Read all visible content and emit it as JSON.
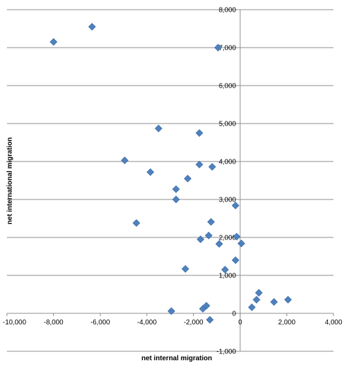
{
  "chart_data": {
    "type": "scatter",
    "xlabel": "net internal migration",
    "ylabel": "net international migration",
    "xlim": [
      -10000,
      4000
    ],
    "ylim": [
      -1000,
      8000
    ],
    "x_ticks": [
      -10000,
      -8000,
      -6000,
      -4000,
      -2000,
      0,
      2000,
      4000
    ],
    "y_ticks": [
      -1000,
      0,
      1000,
      2000,
      3000,
      4000,
      5000,
      6000,
      7000,
      8000
    ],
    "x_tick_labels": [
      "-10,000",
      "-8,000",
      "-6,000",
      "-4,000",
      "-2,000",
      "0",
      "2,000",
      "4,000"
    ],
    "y_tick_labels": [
      "-1,000",
      "0",
      "1,000",
      "2,000",
      "3,000",
      "4,000",
      "5,000",
      "6,000",
      "7,000",
      "8,000"
    ],
    "grid": "horizontal",
    "marker": "diamond",
    "marker_color": "#4F81BD",
    "series": [
      {
        "points": [
          [
            -8000,
            7150
          ],
          [
            -6350,
            7550
          ],
          [
            -950,
            7000
          ],
          [
            -3500,
            4870
          ],
          [
            -1750,
            4750
          ],
          [
            -4950,
            4030
          ],
          [
            -1750,
            3920
          ],
          [
            -1200,
            3860
          ],
          [
            -3850,
            3720
          ],
          [
            -2250,
            3550
          ],
          [
            -2750,
            3270
          ],
          [
            -2750,
            3000
          ],
          [
            -4450,
            2380
          ],
          [
            -1250,
            2410
          ],
          [
            -200,
            2840
          ],
          [
            -1350,
            2050
          ],
          [
            -1700,
            1950
          ],
          [
            -150,
            2020
          ],
          [
            -900,
            1830
          ],
          [
            50,
            1840
          ],
          [
            -200,
            1400
          ],
          [
            -650,
            1150
          ],
          [
            -2350,
            1170
          ],
          [
            800,
            540
          ],
          [
            700,
            360
          ],
          [
            1450,
            300
          ],
          [
            2050,
            360
          ],
          [
            500,
            160
          ],
          [
            -2950,
            60
          ],
          [
            -1600,
            120
          ],
          [
            -1450,
            200
          ],
          [
            -1300,
            -170
          ]
        ]
      }
    ]
  }
}
